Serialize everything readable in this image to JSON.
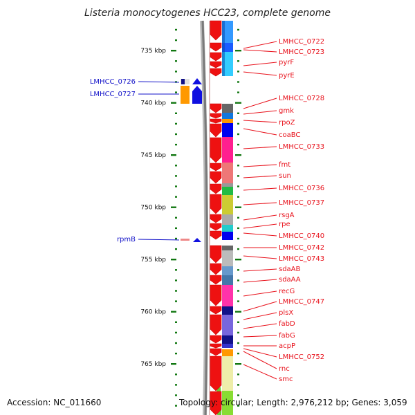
{
  "title": "Listeria monocytogenes HCC23, complete genome",
  "footer": {
    "accession": "Accession: NC_011660",
    "topology": "Topology: circular; Length: 2,976,212 bp; Genes: 3,059"
  },
  "colors": {
    "forward_gene": "#ee1111",
    "reverse_gene": "#1010e0",
    "tick": "#117711",
    "label_right": "#e8101a",
    "label_left": "#1010c8",
    "backbone": "#7a7a7a"
  },
  "kbp_ticks": [
    {
      "label": "735 kbp",
      "kbp": 735
    },
    {
      "label": "740 kbp",
      "kbp": 740
    },
    {
      "label": "745 kbp",
      "kbp": 745
    },
    {
      "label": "750 kbp",
      "kbp": 750
    },
    {
      "label": "755 kbp",
      "kbp": 755
    },
    {
      "label": "760 kbp",
      "kbp": 760
    },
    {
      "label": "765 kbp",
      "kbp": 765
    }
  ],
  "right_labels": [
    "LMHCC_0722",
    "LMHCC_0723",
    "pyrF",
    "pyrE",
    "LMHCC_0728",
    "gmk",
    "rpoZ",
    "coaBC",
    "LMHCC_0733",
    "fmt",
    "sun",
    "LMHCC_0736",
    "LMHCC_0737",
    "rsgA",
    "rpe",
    "LMHCC_0740",
    "LMHCC_0742",
    "LMHCC_0743",
    "sdaAB",
    "sdaAA",
    "recG",
    "LMHCC_0747",
    "plsX",
    "fabD",
    "fabG",
    "acpP",
    "LMHCC_0752",
    "rnc",
    "smc"
  ],
  "left_labels": [
    "LMHCC_0726",
    "LMHCC_0727",
    "rpmB"
  ]
}
